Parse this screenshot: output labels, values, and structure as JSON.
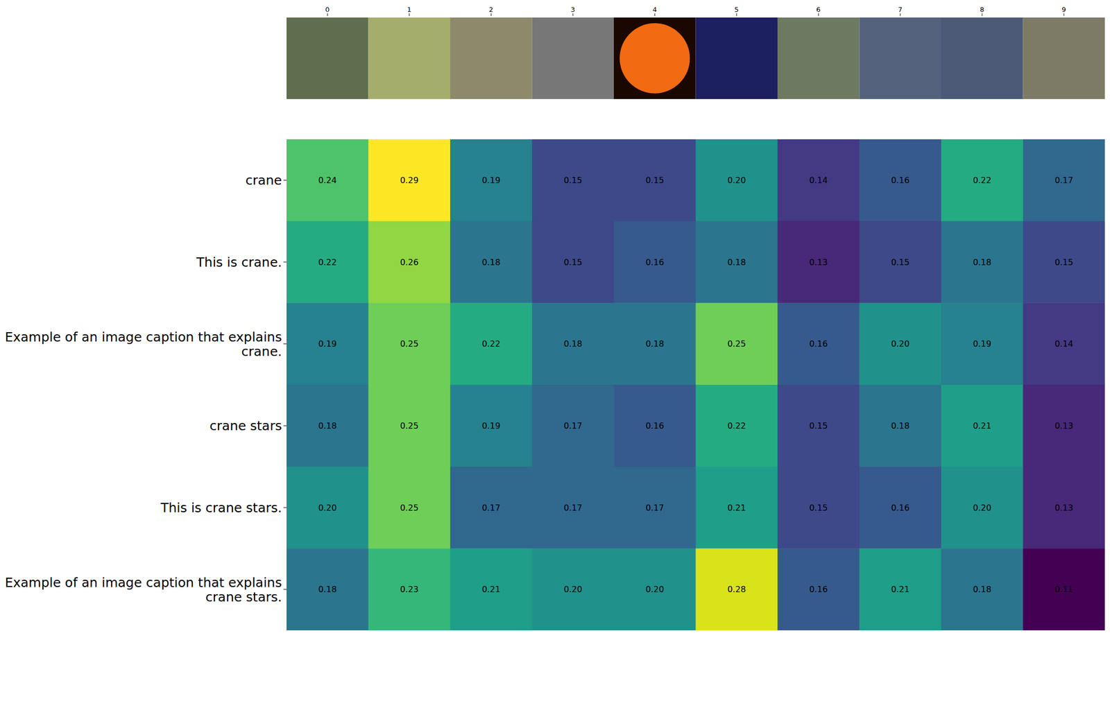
{
  "chart_data": {
    "type": "heatmap",
    "x": [
      0,
      1,
      2,
      3,
      4,
      5,
      6,
      7,
      8,
      9
    ],
    "y": [
      "crane",
      "This is crane.",
      "Example of an image caption that explains crane.",
      "crane stars",
      "This is crane stars.",
      "Example of an image caption that explains crane stars."
    ],
    "values": [
      [
        0.24,
        0.29,
        0.19,
        0.15,
        0.15,
        0.2,
        0.14,
        0.16,
        0.22,
        0.17
      ],
      [
        0.22,
        0.26,
        0.18,
        0.15,
        0.16,
        0.18,
        0.13,
        0.15,
        0.18,
        0.15
      ],
      [
        0.19,
        0.25,
        0.22,
        0.18,
        0.18,
        0.25,
        0.16,
        0.2,
        0.19,
        0.14
      ],
      [
        0.18,
        0.25,
        0.19,
        0.17,
        0.16,
        0.22,
        0.15,
        0.18,
        0.21,
        0.13
      ],
      [
        0.2,
        0.25,
        0.17,
        0.17,
        0.17,
        0.21,
        0.15,
        0.16,
        0.2,
        0.13
      ],
      [
        0.18,
        0.23,
        0.21,
        0.2,
        0.2,
        0.28,
        0.16,
        0.21,
        0.18,
        0.11
      ]
    ],
    "value_labels": [
      [
        "0.24",
        "0.29",
        "0.19",
        "0.15",
        "0.15",
        "0.20",
        "0.14",
        "0.16",
        "0.22",
        "0.17"
      ],
      [
        "0.22",
        "0.26",
        "0.18",
        "0.15",
        "0.16",
        "0.18",
        "0.13",
        "0.15",
        "0.18",
        "0.15"
      ],
      [
        "0.19",
        "0.25",
        "0.22",
        "0.18",
        "0.18",
        "0.25",
        "0.16",
        "0.20",
        "0.19",
        "0.14"
      ],
      [
        "0.18",
        "0.25",
        "0.19",
        "0.17",
        "0.16",
        "0.22",
        "0.15",
        "0.18",
        "0.21",
        "0.13"
      ],
      [
        "0.20",
        "0.25",
        "0.17",
        "0.17",
        "0.17",
        "0.21",
        "0.15",
        "0.16",
        "0.20",
        "0.13"
      ],
      [
        "0.18",
        "0.23",
        "0.21",
        "0.20",
        "0.20",
        "0.28",
        "0.16",
        "0.21",
        "0.18",
        "0.11"
      ]
    ],
    "data_labels": true
  }
}
